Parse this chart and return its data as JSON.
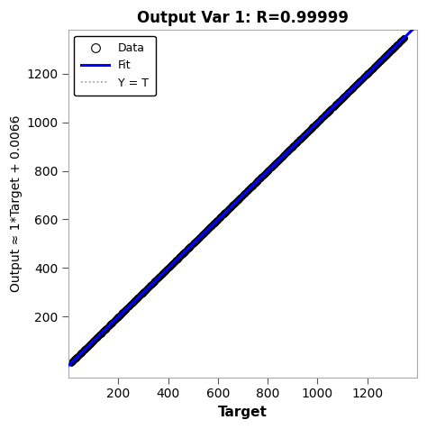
{
  "title": "Output Var 1: R=0.99999",
  "xlabel": "Target",
  "ylabel": "Output ≈ 1*Target + 0.0066",
  "xlim": [
    0,
    1400
  ],
  "ylim": [
    -50,
    1380
  ],
  "xticks": [
    200,
    400,
    600,
    800,
    1000,
    1200
  ],
  "yticks": [
    200,
    400,
    600,
    800,
    1000,
    1200
  ],
  "fit_slope": 1.0,
  "fit_intercept": 0.0066,
  "data_xmin": 10,
  "data_xmax": 1350,
  "n_points": 5000,
  "circle_color": "black",
  "fit_color": "blue",
  "yt_color": "#999999",
  "background_color": "white",
  "legend_entries": [
    "Data",
    "Fit",
    "Y = T"
  ],
  "title_fontsize": 12,
  "label_fontsize": 11,
  "tick_fontsize": 10,
  "marker_size": 4
}
